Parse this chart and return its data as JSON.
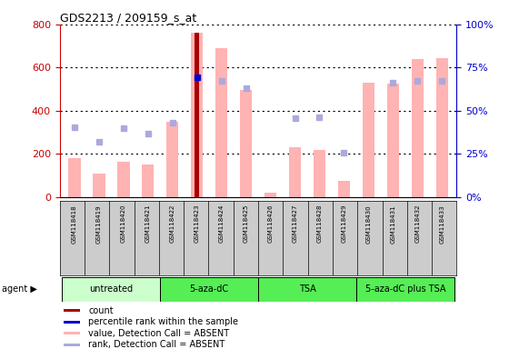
{
  "title": "GDS2213 / 209159_s_at",
  "samples": [
    "GSM118418",
    "GSM118419",
    "GSM118420",
    "GSM118421",
    "GSM118422",
    "GSM118423",
    "GSM118424",
    "GSM118425",
    "GSM118426",
    "GSM118427",
    "GSM118428",
    "GSM118429",
    "GSM118430",
    "GSM118431",
    "GSM118432",
    "GSM118433"
  ],
  "values_absent": [
    180,
    110,
    165,
    150,
    350,
    760,
    690,
    495,
    20,
    230,
    220,
    75,
    530,
    525,
    640,
    645
  ],
  "ranks_absent": [
    325,
    255,
    320,
    295,
    345,
    null,
    540,
    505,
    null,
    365,
    370,
    205,
    null,
    530,
    540,
    540
  ],
  "count_bar_idx": 5,
  "count_bar_val": 760,
  "rank_dot_val": 555,
  "group_defs": [
    {
      "label": "untreated",
      "start": 0,
      "end": 3,
      "color": "#ccffcc"
    },
    {
      "label": "5-aza-dC",
      "start": 4,
      "end": 7,
      "color": "#55ee55"
    },
    {
      "label": "TSA",
      "start": 8,
      "end": 11,
      "color": "#55ee55"
    },
    {
      "label": "5-aza-dC plus TSA",
      "start": 12,
      "end": 15,
      "color": "#55ee55"
    }
  ],
  "ylim": [
    0,
    800
  ],
  "yticks_left": [
    0,
    200,
    400,
    600,
    800
  ],
  "yticks_right": [
    0,
    25,
    50,
    75,
    100
  ],
  "right_axis_color": "#0000cc",
  "left_axis_color": "#cc0000",
  "bar_color_absent": "#ffb3b3",
  "rank_dot_color": "#aaaadd",
  "count_bar_color": "#aa0000",
  "rank_dot_blue_color": "#0000cc",
  "legend_items": [
    {
      "label": "count",
      "color": "#aa0000"
    },
    {
      "label": "percentile rank within the sample",
      "color": "#0000cc"
    },
    {
      "label": "value, Detection Call = ABSENT",
      "color": "#ffb3b3"
    },
    {
      "label": "rank, Detection Call = ABSENT",
      "color": "#aaaadd"
    }
  ],
  "background_color": "#ffffff",
  "grid_color": "#000000",
  "sample_bg_color": "#cccccc",
  "bar_width": 0.5
}
